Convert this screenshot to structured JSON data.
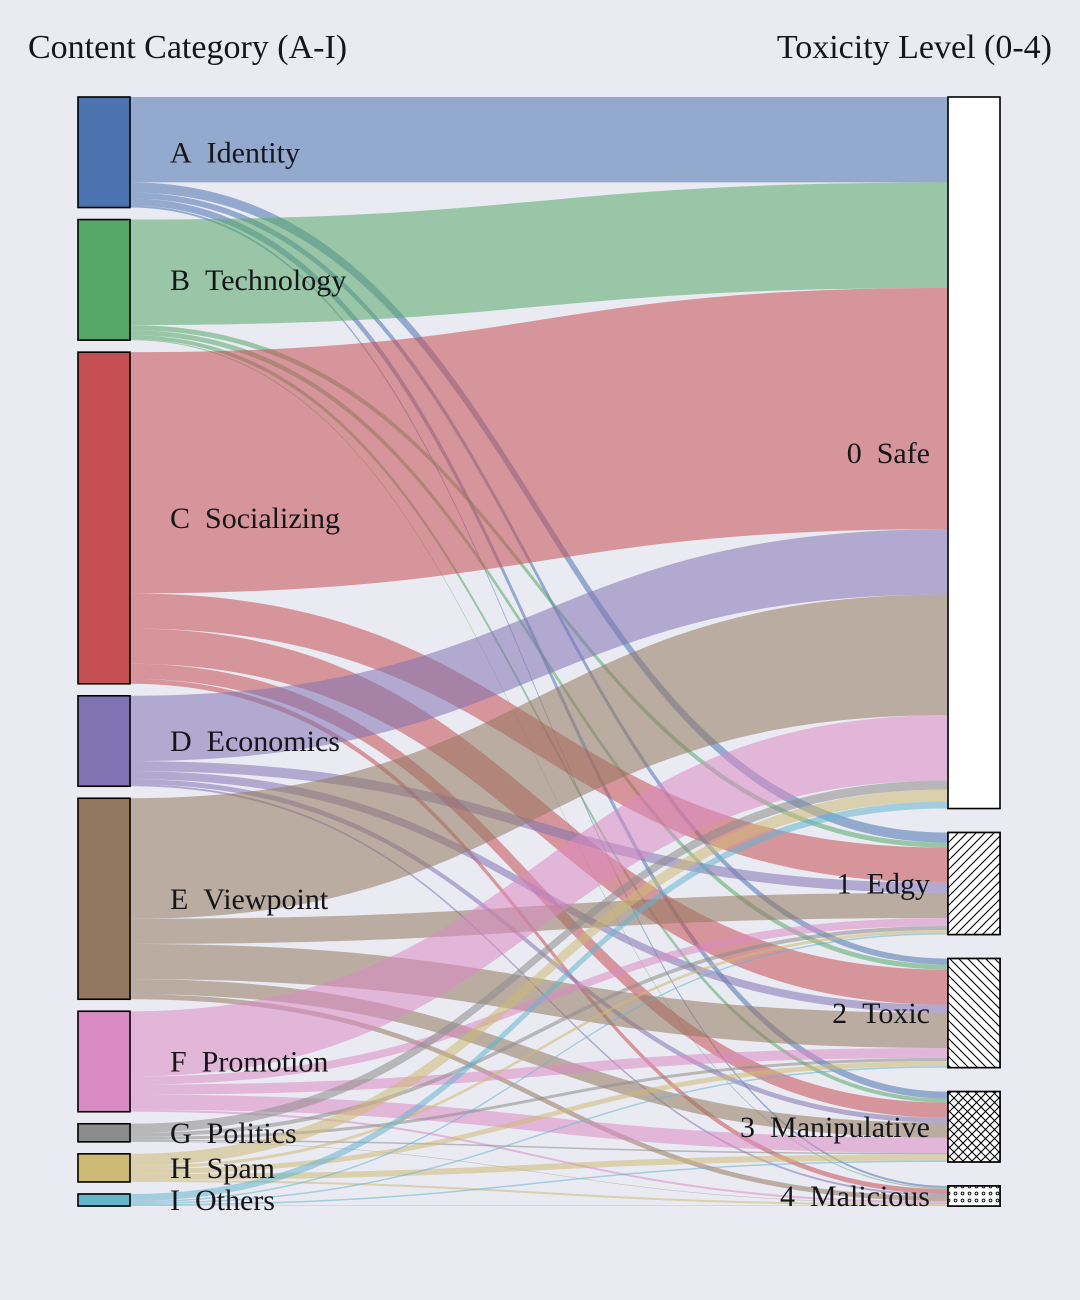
{
  "figure": {
    "background_color": "#EAEAF2",
    "left_column_title": "Content Category (A-I)",
    "right_column_title": "Toxicity Level (0-4)"
  },
  "chart_data": {
    "type": "sankey",
    "title": "",
    "left_axis_label": "Content Category (A-I)",
    "right_axis_label": "Toxicity Level (0-4)",
    "units": "percent_of_total",
    "nodes": {
      "sources": [
        {
          "id": "A",
          "label": "Identity",
          "color": "#4C72B0"
        },
        {
          "id": "B",
          "label": "Technology",
          "color": "#55A868"
        },
        {
          "id": "C",
          "label": "Socializing",
          "color": "#C44E52"
        },
        {
          "id": "D",
          "label": "Economics",
          "color": "#8172B3"
        },
        {
          "id": "E",
          "label": "Viewpoint",
          "color": "#937860"
        },
        {
          "id": "F",
          "label": "Promotion",
          "color": "#DA8BC3"
        },
        {
          "id": "G",
          "label": "Politics",
          "color": "#8C8C8C"
        },
        {
          "id": "H",
          "label": "Spam",
          "color": "#CCB974"
        },
        {
          "id": "I",
          "label": "Others",
          "color": "#64B5CD"
        }
      ],
      "targets": [
        {
          "id": "0",
          "label": "Safe",
          "pattern": "none"
        },
        {
          "id": "1",
          "label": "Edgy",
          "pattern": "diag-fwd"
        },
        {
          "id": "2",
          "label": "Toxic",
          "pattern": "diag-bwd"
        },
        {
          "id": "3",
          "label": "Manipulative",
          "pattern": "cross"
        },
        {
          "id": "4",
          "label": "Malicious",
          "pattern": "dots"
        }
      ]
    },
    "links": [
      {
        "source": "A",
        "target": "0",
        "value": 8.5
      },
      {
        "source": "A",
        "target": "1",
        "value": 1.0
      },
      {
        "source": "A",
        "target": "2",
        "value": 0.6
      },
      {
        "source": "A",
        "target": "3",
        "value": 0.7
      },
      {
        "source": "A",
        "target": "4",
        "value": 0.2
      },
      {
        "source": "B",
        "target": "0",
        "value": 10.5
      },
      {
        "source": "B",
        "target": "1",
        "value": 0.5
      },
      {
        "source": "B",
        "target": "2",
        "value": 0.5
      },
      {
        "source": "B",
        "target": "3",
        "value": 0.4
      },
      {
        "source": "B",
        "target": "4",
        "value": 0.1
      },
      {
        "source": "C",
        "target": "0",
        "value": 24.0
      },
      {
        "source": "C",
        "target": "1",
        "value": 3.5
      },
      {
        "source": "C",
        "target": "2",
        "value": 3.5
      },
      {
        "source": "C",
        "target": "3",
        "value": 1.5
      },
      {
        "source": "C",
        "target": "4",
        "value": 0.5
      },
      {
        "source": "D",
        "target": "0",
        "value": 6.5
      },
      {
        "source": "D",
        "target": "1",
        "value": 1.0
      },
      {
        "source": "D",
        "target": "2",
        "value": 0.8
      },
      {
        "source": "D",
        "target": "3",
        "value": 0.5
      },
      {
        "source": "D",
        "target": "4",
        "value": 0.2
      },
      {
        "source": "E",
        "target": "0",
        "value": 12.0
      },
      {
        "source": "E",
        "target": "1",
        "value": 2.5
      },
      {
        "source": "E",
        "target": "2",
        "value": 3.5
      },
      {
        "source": "E",
        "target": "3",
        "value": 1.5
      },
      {
        "source": "E",
        "target": "4",
        "value": 0.5
      },
      {
        "source": "F",
        "target": "0",
        "value": 6.5
      },
      {
        "source": "F",
        "target": "1",
        "value": 0.8
      },
      {
        "source": "F",
        "target": "2",
        "value": 1.0
      },
      {
        "source": "F",
        "target": "3",
        "value": 1.5
      },
      {
        "source": "F",
        "target": "4",
        "value": 0.2
      },
      {
        "source": "G",
        "target": "0",
        "value": 0.9
      },
      {
        "source": "G",
        "target": "1",
        "value": 0.4
      },
      {
        "source": "G",
        "target": "2",
        "value": 0.3
      },
      {
        "source": "G",
        "target": "3",
        "value": 0.15
      },
      {
        "source": "G",
        "target": "4",
        "value": 0.05
      },
      {
        "source": "H",
        "target": "0",
        "value": 1.2
      },
      {
        "source": "H",
        "target": "1",
        "value": 0.3
      },
      {
        "source": "H",
        "target": "2",
        "value": 0.5
      },
      {
        "source": "H",
        "target": "3",
        "value": 0.6
      },
      {
        "source": "H",
        "target": "4",
        "value": 0.2
      },
      {
        "source": "I",
        "target": "0",
        "value": 0.7
      },
      {
        "source": "I",
        "target": "1",
        "value": 0.15
      },
      {
        "source": "I",
        "target": "2",
        "value": 0.15
      },
      {
        "source": "I",
        "target": "3",
        "value": 0.15
      },
      {
        "source": "I",
        "target": "4",
        "value": 0.05
      }
    ],
    "layout": {
      "link_opacity": 0.55,
      "node_border_color": "#000000",
      "target_node_fill": "#ffffff"
    }
  }
}
